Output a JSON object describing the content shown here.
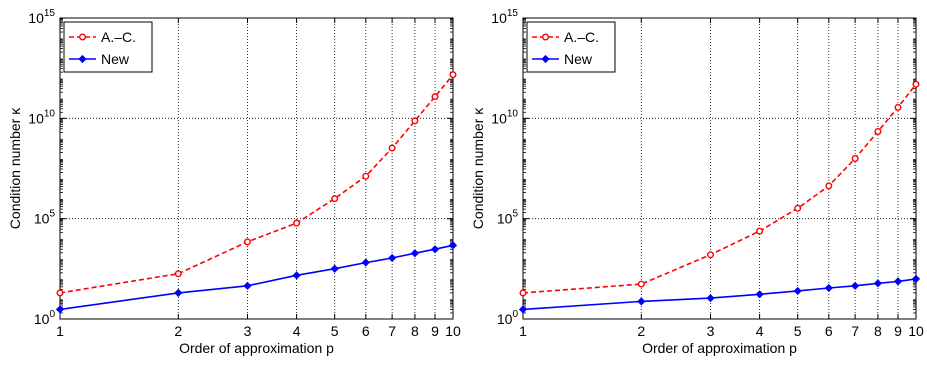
{
  "chart_data": [
    {
      "type": "line",
      "xlabel": "Order of approximation p",
      "ylabel": "Condition number κ",
      "x_scale": "log",
      "y_scale": "log",
      "xlim": [
        1,
        10
      ],
      "ylim": [
        1,
        1000000000000000.0
      ],
      "x_ticks": [
        1,
        2,
        3,
        4,
        5,
        6,
        7,
        8,
        9,
        10
      ],
      "y_ticks": [
        {
          "value": 1,
          "base": "10",
          "exp": "0"
        },
        {
          "value": 100000,
          "base": "10",
          "exp": "5"
        },
        {
          "value": 10000000000,
          "base": "10",
          "exp": "10"
        },
        {
          "value": 1000000000000000,
          "base": "10",
          "exp": "15"
        }
      ],
      "grid": "x-major dotted, y-decades dotted",
      "legend_position": "top-left",
      "series": [
        {
          "name": "A.–C.",
          "color": "#ff0000",
          "style": "dashed",
          "marker": "circle",
          "x": [
            1,
            2,
            3,
            4,
            5,
            6,
            7,
            8,
            9,
            10
          ],
          "y": [
            20,
            180,
            7000,
            60000,
            1000000,
            13000000,
            330000000,
            7500000000,
            120000000000,
            1500000000000
          ]
        },
        {
          "name": "New",
          "color": "#0000ff",
          "style": "solid",
          "marker": "diamond",
          "x": [
            1,
            2,
            3,
            4,
            5,
            6,
            7,
            8,
            9,
            10
          ],
          "y": [
            3,
            20,
            45,
            150,
            320,
            650,
            1100,
            1900,
            3000,
            4700
          ]
        }
      ]
    },
    {
      "type": "line",
      "xlabel": "Order of approximation p",
      "ylabel": "Condition number κ",
      "x_scale": "log",
      "y_scale": "log",
      "xlim": [
        1,
        10
      ],
      "ylim": [
        1,
        1000000000000000.0
      ],
      "x_ticks": [
        1,
        2,
        3,
        4,
        5,
        6,
        7,
        8,
        9,
        10
      ],
      "y_ticks": [
        {
          "value": 1,
          "base": "10",
          "exp": "0"
        },
        {
          "value": 100000,
          "base": "10",
          "exp": "5"
        },
        {
          "value": 10000000000,
          "base": "10",
          "exp": "10"
        },
        {
          "value": 1000000000000000,
          "base": "10",
          "exp": "15"
        }
      ],
      "grid": "x-major dotted, y-decades dotted",
      "legend_position": "top-left",
      "series": [
        {
          "name": "A.–C.",
          "color": "#ff0000",
          "style": "dashed",
          "marker": "circle",
          "x": [
            1,
            2,
            3,
            4,
            5,
            6,
            7,
            8,
            9,
            10
          ],
          "y": [
            20,
            55,
            1600,
            24000,
            330000,
            4300000,
            100000000,
            2200000000,
            35000000000,
            500000000000
          ]
        },
        {
          "name": "New",
          "color": "#0000ff",
          "style": "solid",
          "marker": "diamond",
          "x": [
            1,
            2,
            3,
            4,
            5,
            6,
            7,
            8,
            9,
            10
          ],
          "y": [
            3,
            7.5,
            11,
            17,
            25,
            35,
            45,
            60,
            75,
            100
          ]
        }
      ]
    }
  ]
}
